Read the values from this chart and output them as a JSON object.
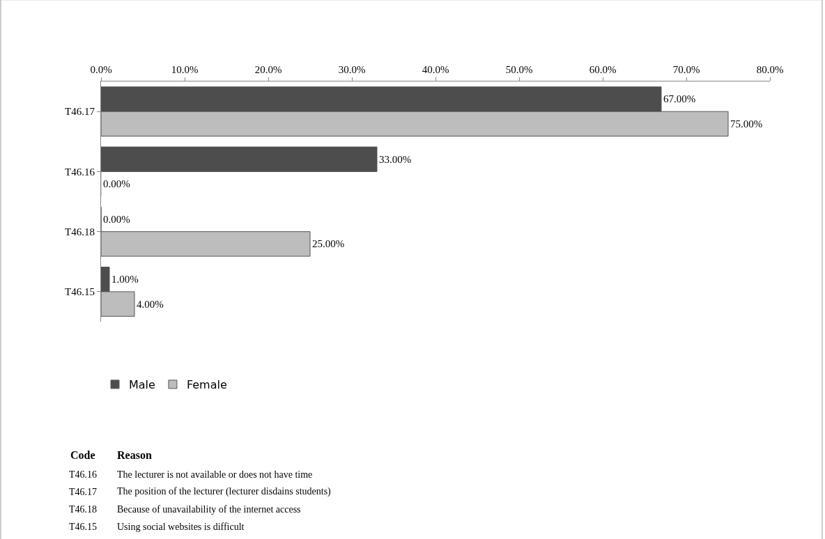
{
  "chart_data": {
    "type": "bar",
    "orientation": "horizontal",
    "categories": [
      "T46.17",
      "T46.16",
      "T46.18",
      "T46.15"
    ],
    "series": [
      {
        "name": "Male",
        "color": "#4d4d4d",
        "values": [
          67,
          33,
          0,
          1
        ],
        "value_labels": [
          "67.00%",
          "33.00%",
          "0.00%",
          "1.00%"
        ]
      },
      {
        "name": "Female",
        "color": "#bdbdbd",
        "values": [
          75,
          0,
          25,
          4
        ],
        "value_labels": [
          "75.00%",
          "0.00%",
          "25.00%",
          "4.00%"
        ]
      }
    ],
    "xlim": [
      0,
      80
    ],
    "xticks": [
      {
        "value": 0,
        "label": "0.0%"
      },
      {
        "value": 10,
        "label": "10.0%"
      },
      {
        "value": 20,
        "label": "20.0%"
      },
      {
        "value": 30,
        "label": "30.0%"
      },
      {
        "value": 40,
        "label": "40.0%"
      },
      {
        "value": 50,
        "label": "50.0%"
      },
      {
        "value": 60,
        "label": "60.0%"
      },
      {
        "value": 70,
        "label": "70.0%"
      },
      {
        "value": 80,
        "label": "80.0%"
      }
    ],
    "grid": false,
    "legend": "bottom",
    "annotations": [
      "Code",
      "Reason",
      "T46.16",
      "The lecturer is not available or does not have time",
      "T46.17",
      "The position of the lecturer (lecturer disdains students)",
      "T46.18",
      "Because of unavailability of the internet access",
      "T46.15",
      "Using social websites is difficult"
    ]
  }
}
